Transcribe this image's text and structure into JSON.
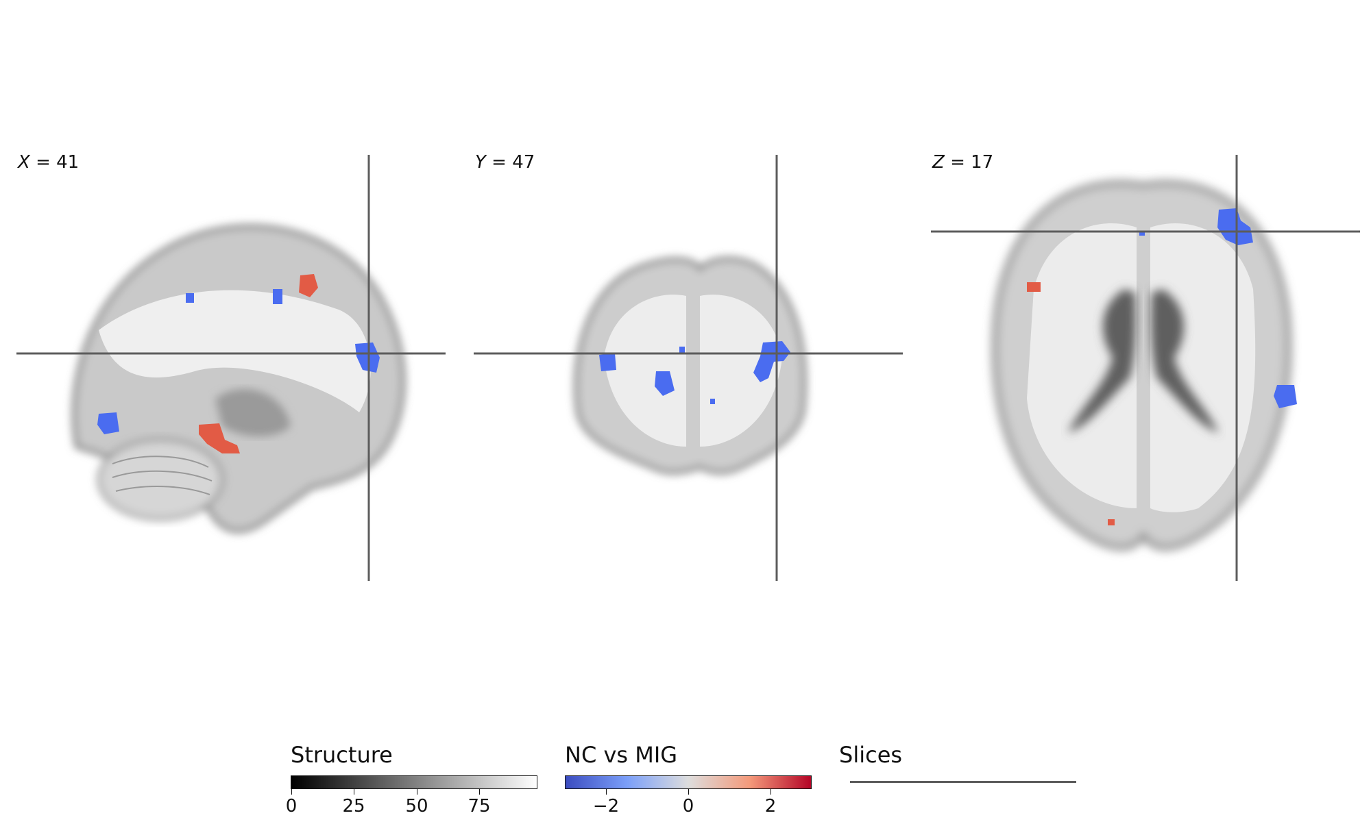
{
  "panels": [
    {
      "axis": "X",
      "value": "= 41"
    },
    {
      "axis": "Y",
      "value": "= 47"
    },
    {
      "axis": "Z",
      "value": "= 17"
    }
  ],
  "legends": {
    "structure": {
      "title": "Structure",
      "ticks": [
        "0",
        "25",
        "50",
        "75"
      ],
      "range": [
        0,
        98
      ],
      "colors": [
        "#000000",
        "#ffffff"
      ]
    },
    "contrast": {
      "title": "NC vs MIG",
      "ticks": [
        "−2",
        "0",
        "2"
      ],
      "range": [
        -3,
        3
      ],
      "colors": [
        "#3b4cc0",
        "#dddddd",
        "#b40426"
      ]
    },
    "slices": {
      "title": "Slices",
      "line_color": "#5c5c5c"
    }
  },
  "overlay_colors": {
    "negative": "#4a6cf0",
    "positive": "#e25b45"
  }
}
